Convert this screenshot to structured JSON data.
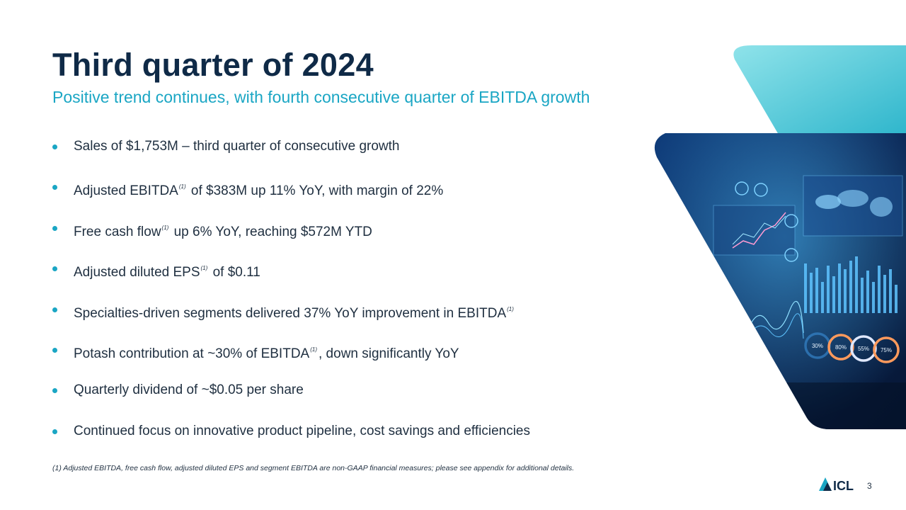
{
  "slide": {
    "title": "Third quarter of 2024",
    "subtitle": "Positive trend continues, with fourth consecutive quarter of EBITDA growth",
    "bullets": [
      {
        "pre": "Sales of $1,753M – third quarter of consecutive growth",
        "fn": "",
        "post": ""
      },
      {
        "pre": "Adjusted EBITDA",
        "fn": "(1)",
        "post": " of $383M up 11% YoY, with margin of 22%"
      },
      {
        "pre": "Free cash flow",
        "fn": "(1)",
        "post": " up 6% YoY, reaching $572M YTD"
      },
      {
        "pre": "Adjusted diluted EPS",
        "fn": "(1)",
        "post": " of $0.11"
      },
      {
        "pre": "Specialties-driven segments delivered 37% YoY improvement in EBITDA",
        "fn": "(1)",
        "post": ""
      },
      {
        "pre": "Potash contribution at ~30% of EBITDA",
        "fn": "(1)",
        "post": ", down significantly YoY"
      },
      {
        "pre": "Quarterly dividend of ~$0.05 per share",
        "fn": "",
        "post": ""
      },
      {
        "pre": "Continued focus on innovative product pipeline, cost savings and efficiencies",
        "fn": "",
        "post": ""
      }
    ],
    "footnote": "(1) Adjusted EBITDA, free cash flow, adjusted diluted EPS and segment EBITDA are non-GAAP financial measures; please see appendix for additional details.",
    "page_number": "3",
    "logo_text": "ICL"
  },
  "image_overlay": {
    "ring_labels": [
      "30%",
      "80%",
      "55%",
      "75%"
    ],
    "ring_fractions": [
      0.3,
      0.8,
      0.55,
      0.75
    ]
  },
  "colors": {
    "title": "#0f2a47",
    "accent": "#1aa6c4",
    "text": "#1f2f40",
    "teal_panel": "#5fd0dc",
    "image_dark": "#0b2a55"
  }
}
